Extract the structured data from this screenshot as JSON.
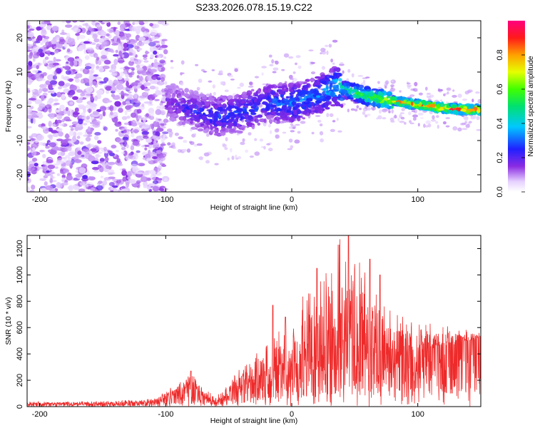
{
  "title": "S233.2026.078.15.19.C22",
  "colors": {
    "background": "#ffffff",
    "snr_line": "#ee2a2a",
    "axis": "#000000"
  },
  "chart_data": [
    {
      "type": "heatmap",
      "name": "spectrogram",
      "xlabel": "Height of straight line (km)",
      "ylabel": "Frequency (Hz)",
      "xlim": [
        -210,
        150
      ],
      "ylim": [
        -25,
        25
      ],
      "x_ticks": [
        -200,
        -100,
        0,
        100
      ],
      "y_ticks": [
        -20,
        -10,
        0,
        10,
        20
      ],
      "colorbar": {
        "label": "Normalized spectral amplitude",
        "range": [
          0.0,
          1.0
        ],
        "ticks": [
          "0.0",
          "0.2",
          "0.4",
          "0.6",
          "0.8"
        ],
        "colormap": "rainbow (white-violet-blue-cyan-green-yellow-orange-red-magenta)"
      },
      "ridge": {
        "description": "frequency ridge amplitude peaks (height km, freq Hz, amplitude)",
        "points": [
          [
            -95,
            1,
            0.2
          ],
          [
            -80,
            -1,
            0.25
          ],
          [
            -60,
            -3,
            0.3
          ],
          [
            -40,
            -2,
            0.3
          ],
          [
            -20,
            1,
            0.3
          ],
          [
            0,
            1,
            0.35
          ],
          [
            20,
            3,
            0.35
          ],
          [
            35,
            6,
            0.45
          ],
          [
            50,
            4,
            0.55
          ],
          [
            65,
            2.5,
            0.7
          ],
          [
            80,
            1.5,
            0.85
          ],
          [
            100,
            0.5,
            0.95
          ],
          [
            120,
            -0.5,
            1.0
          ],
          [
            140,
            -1,
            0.95
          ]
        ]
      }
    },
    {
      "type": "line",
      "name": "snr",
      "xlabel": "Height of straight line (km)",
      "ylabel": "SNR (10 * v/v)",
      "xlim": [
        -210,
        150
      ],
      "ylim": [
        0,
        1300
      ],
      "x_ticks": [
        -200,
        -100,
        0,
        100
      ],
      "y_ticks": [
        0,
        200,
        400,
        600,
        800,
        1000,
        1200
      ],
      "series": [
        {
          "name": "SNR",
          "envelope_x": [
            -210,
            -150,
            -110,
            -90,
            -80,
            -70,
            -60,
            -40,
            -20,
            0,
            20,
            30,
            40,
            50,
            60,
            80,
            100,
            120,
            150
          ],
          "envelope_mean": [
            20,
            20,
            30,
            100,
            170,
            70,
            40,
            150,
            250,
            300,
            350,
            450,
            500,
            450,
            400,
            380,
            400,
            470,
            510
          ],
          "envelope_peak": [
            40,
            40,
            60,
            180,
            260,
            130,
            90,
            300,
            500,
            700,
            1050,
            1150,
            1300,
            1150,
            1000,
            750,
            650,
            620,
            560
          ],
          "notable_peaks": [
            [
              20,
              1050
            ],
            [
              45,
              1300
            ],
            [
              62,
              1120
            ],
            [
              70,
              1000
            ],
            [
              -15,
              770
            ],
            [
              -5,
              680
            ],
            [
              -80,
              270
            ]
          ]
        }
      ]
    }
  ]
}
